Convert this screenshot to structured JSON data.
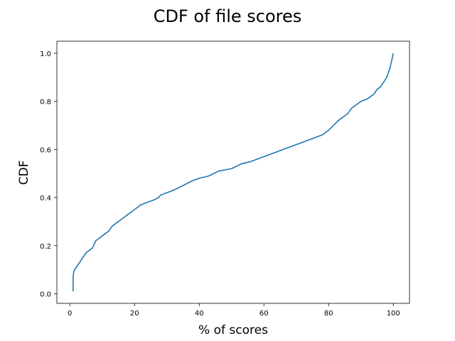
{
  "chart_data": {
    "type": "line",
    "title": "CDF of file scores",
    "xlabel": "% of scores",
    "ylabel": "CDF",
    "xlim": [
      -4,
      105
    ],
    "ylim": [
      -0.04,
      1.05
    ],
    "xticks": [
      0,
      20,
      40,
      60,
      80,
      100
    ],
    "xtick_labels": [
      "0",
      "20",
      "40",
      "60",
      "80",
      "100"
    ],
    "yticks": [
      0.0,
      0.2,
      0.4,
      0.6,
      0.8,
      1.0
    ],
    "ytick_labels": [
      "0.0",
      "0.2",
      "0.4",
      "0.6",
      "0.8",
      "1.0"
    ],
    "grid": false,
    "series": [
      {
        "color": "#1f77b4",
        "x": [
          1,
          1,
          1.2,
          1.5,
          2,
          3,
          4,
          5,
          6,
          7,
          8,
          9,
          10,
          11,
          12,
          13,
          14,
          16,
          17,
          18,
          20,
          21,
          22,
          24,
          26,
          27.5,
          28,
          30,
          32,
          35,
          38,
          40,
          43,
          46,
          50,
          53,
          56,
          58,
          60,
          62,
          64,
          66,
          70,
          74,
          76,
          78,
          80,
          83,
          86,
          87,
          88,
          89,
          90,
          92,
          94,
          95,
          96,
          97,
          98,
          98.5,
          99,
          99.5,
          100
        ],
        "y": [
          0.01,
          0.07,
          0.09,
          0.1,
          0.11,
          0.13,
          0.15,
          0.17,
          0.18,
          0.19,
          0.22,
          0.23,
          0.24,
          0.25,
          0.26,
          0.28,
          0.29,
          0.31,
          0.32,
          0.33,
          0.35,
          0.36,
          0.37,
          0.38,
          0.39,
          0.4,
          0.41,
          0.42,
          0.43,
          0.45,
          0.47,
          0.48,
          0.49,
          0.51,
          0.52,
          0.54,
          0.55,
          0.56,
          0.57,
          0.58,
          0.59,
          0.6,
          0.62,
          0.64,
          0.65,
          0.66,
          0.68,
          0.72,
          0.75,
          0.77,
          0.78,
          0.79,
          0.8,
          0.81,
          0.83,
          0.85,
          0.86,
          0.88,
          0.9,
          0.92,
          0.94,
          0.97,
          1.0
        ]
      }
    ]
  }
}
